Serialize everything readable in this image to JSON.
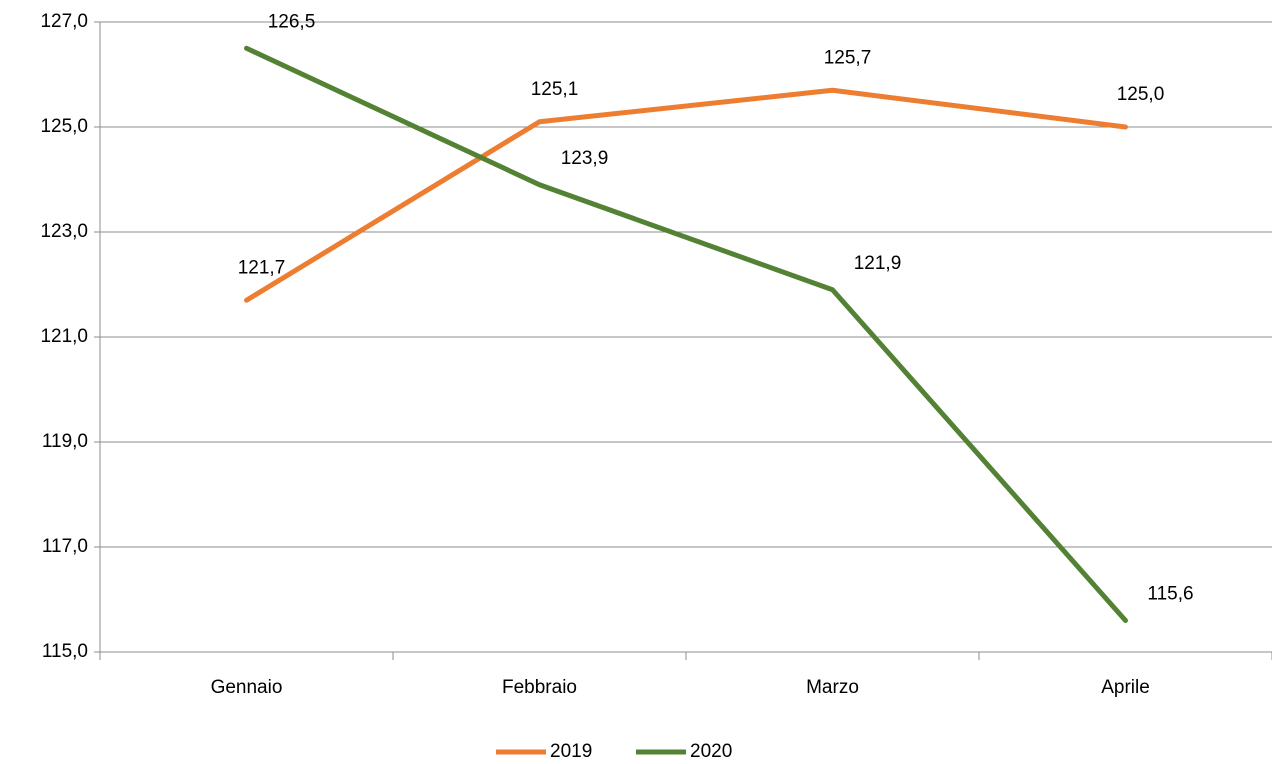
{
  "chart_data": {
    "type": "line",
    "categories": [
      "Gennaio",
      "Febbraio",
      "Marzo",
      "Aprile"
    ],
    "series": [
      {
        "name": "2019",
        "color": "#ed7d31",
        "values": [
          121.7,
          125.1,
          125.7,
          125.0
        ],
        "value_labels": [
          "121,7",
          "125,1",
          "125,7",
          "125,0"
        ]
      },
      {
        "name": "2020",
        "color": "#548235",
        "values": [
          126.5,
          123.9,
          121.9,
          115.6
        ],
        "value_labels": [
          "126,5",
          "123,9",
          "121,9",
          "115,6"
        ]
      }
    ],
    "ylim": [
      115,
      127
    ],
    "yticks": [
      {
        "value": 115,
        "label": "115,0"
      },
      {
        "value": 117,
        "label": "117,0"
      },
      {
        "value": 119,
        "label": "119,0"
      },
      {
        "value": 121,
        "label": "121,0"
      },
      {
        "value": 123,
        "label": "123,0"
      },
      {
        "value": 125,
        "label": "125,0"
      },
      {
        "value": 127,
        "label": "127,0"
      }
    ],
    "grid": true,
    "legend": "bottom"
  }
}
